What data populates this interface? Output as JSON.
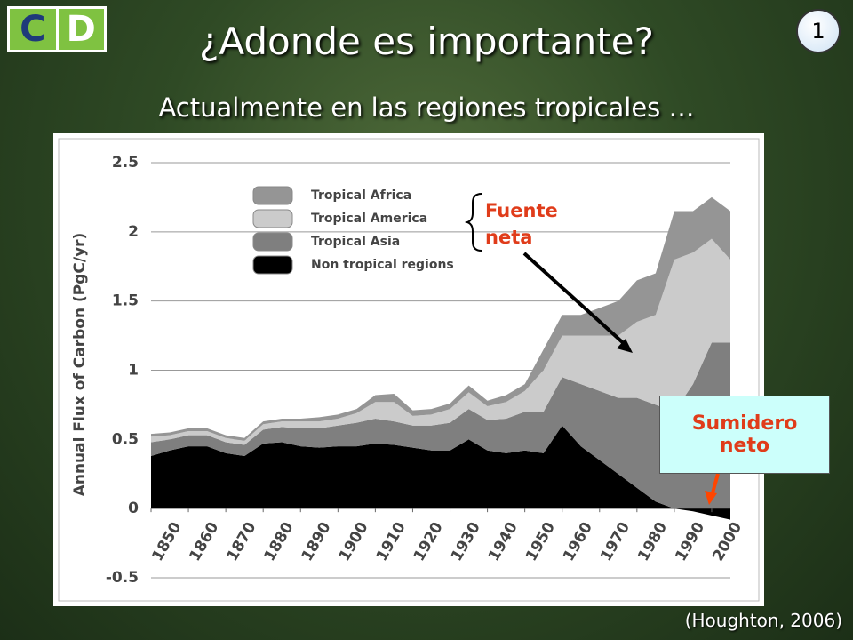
{
  "slide": {
    "logo": [
      "C",
      "D"
    ],
    "title": "¿Adonde es importante?",
    "subtitle": "Actualmente en las regiones tropicales …",
    "page_number": "1",
    "citation": "(Houghton, 2006)",
    "annotations": {
      "source": "Fuente neta",
      "sink": "Sumidero neto"
    }
  },
  "chart_data": {
    "type": "stacked-area",
    "y_label": "Annual Flux of Carbon (PgC/yr)",
    "x": [
      1850,
      1855,
      1860,
      1865,
      1870,
      1875,
      1880,
      1885,
      1890,
      1895,
      1900,
      1905,
      1910,
      1915,
      1920,
      1925,
      1930,
      1935,
      1940,
      1945,
      1950,
      1955,
      1960,
      1965,
      1970,
      1975,
      1980,
      1985,
      1990,
      1995,
      2000,
      2005
    ],
    "series": [
      {
        "name": "Non tropical regions",
        "color": "#000000",
        "values": [
          0.38,
          0.42,
          0.45,
          0.45,
          0.4,
          0.38,
          0.47,
          0.48,
          0.45,
          0.44,
          0.45,
          0.45,
          0.47,
          0.46,
          0.44,
          0.42,
          0.42,
          0.5,
          0.42,
          0.4,
          0.42,
          0.4,
          0.6,
          0.45,
          0.35,
          0.25,
          0.15,
          0.05,
          0.0,
          -0.02,
          -0.05,
          -0.08
        ]
      },
      {
        "name": "Tropical Asia",
        "color": "#7f7f7f",
        "values": [
          0.1,
          0.08,
          0.08,
          0.08,
          0.08,
          0.08,
          0.1,
          0.11,
          0.13,
          0.14,
          0.15,
          0.17,
          0.18,
          0.17,
          0.16,
          0.18,
          0.2,
          0.22,
          0.22,
          0.25,
          0.28,
          0.3,
          0.35,
          0.45,
          0.5,
          0.55,
          0.65,
          0.7,
          0.7,
          0.9,
          1.2,
          1.2
        ]
      },
      {
        "name": "Tropical America",
        "color": "#cbcbcb",
        "values": [
          0.04,
          0.03,
          0.03,
          0.03,
          0.03,
          0.03,
          0.04,
          0.04,
          0.05,
          0.05,
          0.05,
          0.07,
          0.12,
          0.14,
          0.07,
          0.08,
          0.1,
          0.12,
          0.1,
          0.12,
          0.15,
          0.3,
          0.3,
          0.35,
          0.4,
          0.45,
          0.55,
          0.65,
          1.1,
          0.95,
          0.75,
          0.6
        ]
      },
      {
        "name": "Tropical Africa",
        "color": "#959595",
        "values": [
          0.02,
          0.02,
          0.02,
          0.02,
          0.02,
          0.02,
          0.02,
          0.02,
          0.02,
          0.03,
          0.03,
          0.03,
          0.05,
          0.06,
          0.04,
          0.04,
          0.04,
          0.05,
          0.04,
          0.05,
          0.05,
          0.15,
          0.15,
          0.15,
          0.2,
          0.25,
          0.3,
          0.3,
          0.35,
          0.3,
          0.3,
          0.35
        ]
      }
    ],
    "xlim": [
      1850,
      2005
    ],
    "xticks": [
      1850,
      1860,
      1870,
      1880,
      1890,
      1900,
      1910,
      1920,
      1930,
      1940,
      1950,
      1960,
      1970,
      1980,
      1990,
      2000
    ],
    "ylim": [
      -0.5,
      2.5
    ],
    "yticks": [
      -0.5,
      0,
      0.5,
      1,
      1.5,
      2,
      2.5
    ],
    "grid": true
  }
}
